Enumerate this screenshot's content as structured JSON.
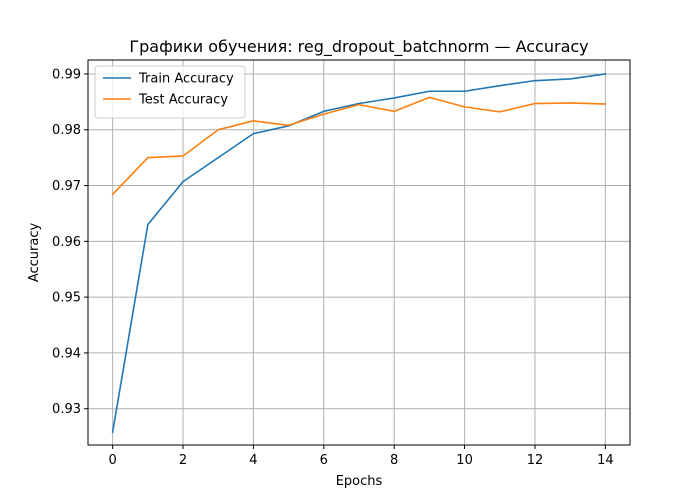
{
  "chart_data": {
    "type": "line",
    "title": "Графики обучения: reg_dropout_batchnorm — Accuracy",
    "xlabel": "Epochs",
    "ylabel": "Accuracy",
    "x": [
      0,
      1,
      2,
      3,
      4,
      5,
      6,
      7,
      8,
      9,
      10,
      11,
      12,
      13,
      14
    ],
    "xlim": [
      -0.7,
      14.7
    ],
    "ylim": [
      0.9235,
      0.9925
    ],
    "xticks": [
      0,
      2,
      4,
      6,
      8,
      10,
      12,
      14
    ],
    "yticks": [
      0.93,
      0.94,
      0.95,
      0.96,
      0.97,
      0.98,
      0.99
    ],
    "xtick_labels": [
      "0",
      "2",
      "4",
      "6",
      "8",
      "10",
      "12",
      "14"
    ],
    "ytick_labels": [
      "0.93",
      "0.94",
      "0.95",
      "0.96",
      "0.97",
      "0.98",
      "0.99"
    ],
    "grid": true,
    "legend_position": "upper-left",
    "series": [
      {
        "name": "Train Accuracy",
        "color": "#1f77b4",
        "values": [
          0.9258,
          0.963,
          0.9707,
          0.975,
          0.9793,
          0.9807,
          0.9833,
          0.9847,
          0.9857,
          0.9869,
          0.9869,
          0.9879,
          0.9888,
          0.9891,
          0.99
        ]
      },
      {
        "name": "Test Accuracy",
        "color": "#ff7f0e",
        "values": [
          0.9684,
          0.975,
          0.9753,
          0.98,
          0.9816,
          0.9808,
          0.9828,
          0.9845,
          0.9833,
          0.9858,
          0.9841,
          0.9832,
          0.9847,
          0.9848,
          0.9846
        ]
      }
    ]
  }
}
